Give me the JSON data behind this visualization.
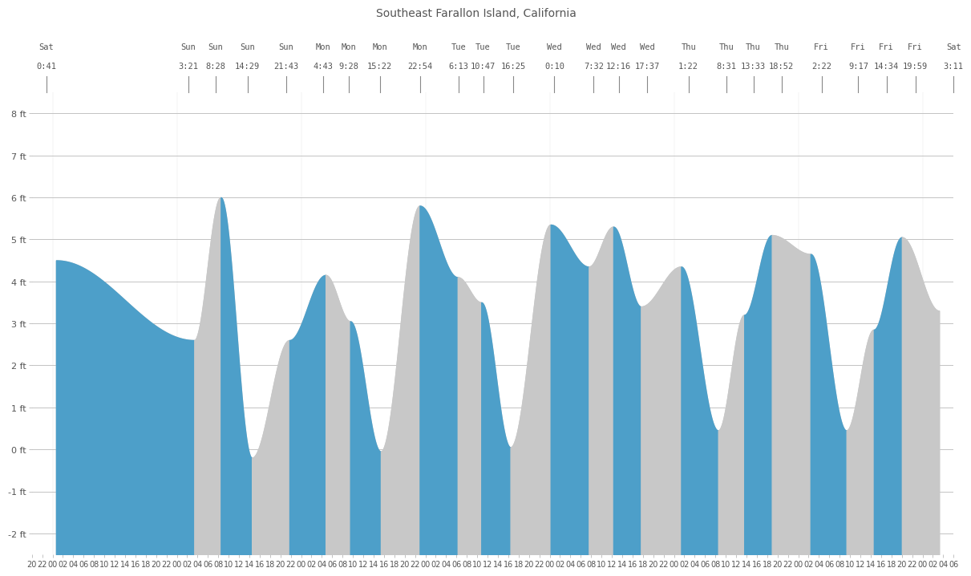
{
  "title": "Southeast Farallon Island, California",
  "ylim": [
    -2.5,
    8.5
  ],
  "yticks": [
    -2,
    -1,
    0,
    1,
    2,
    3,
    4,
    5,
    6,
    7,
    8
  ],
  "blue_color": "#4d9fc9",
  "gray_color": "#c8c8c8",
  "background_color": "#ffffff",
  "grid_color": "#888888",
  "tick_label_color": "#555555",
  "title_color": "#555555",
  "tide_events": [
    {
      "day": "Sat",
      "time": "0:41",
      "value": 4.5,
      "day_idx": 0
    },
    {
      "day": "Sun",
      "time": "3:21",
      "value": 2.6,
      "day_idx": 1
    },
    {
      "day": "Sun",
      "time": "8:28",
      "value": 6.0,
      "day_idx": 1
    },
    {
      "day": "Sun",
      "time": "14:29",
      "value": -0.2,
      "day_idx": 1
    },
    {
      "day": "Sun",
      "time": "21:43",
      "value": 2.6,
      "day_idx": 1
    },
    {
      "day": "Mon",
      "time": "4:43",
      "value": 4.15,
      "day_idx": 2
    },
    {
      "day": "Mon",
      "time": "9:28",
      "value": 3.05,
      "day_idx": 2
    },
    {
      "day": "Mon",
      "time": "15:22",
      "value": -0.05,
      "day_idx": 2
    },
    {
      "day": "Mon",
      "time": "22:54",
      "value": 5.8,
      "day_idx": 2
    },
    {
      "day": "Tue",
      "time": "6:13",
      "value": 4.1,
      "day_idx": 3
    },
    {
      "day": "Tue",
      "time": "10:47",
      "value": 3.5,
      "day_idx": 3
    },
    {
      "day": "Tue",
      "time": "16:25",
      "value": 0.05,
      "day_idx": 3
    },
    {
      "day": "Wed",
      "time": "0:10",
      "value": 5.35,
      "day_idx": 4
    },
    {
      "day": "Wed",
      "time": "7:32",
      "value": 4.35,
      "day_idx": 4
    },
    {
      "day": "Wed",
      "time": "12:16",
      "value": 5.3,
      "day_idx": 4
    },
    {
      "day": "Wed",
      "time": "17:37",
      "value": 3.4,
      "day_idx": 4
    },
    {
      "day": "Thu",
      "time": "1:22",
      "value": 4.35,
      "day_idx": 5
    },
    {
      "day": "Thu",
      "time": "8:31",
      "value": 0.45,
      "day_idx": 5
    },
    {
      "day": "Thu",
      "time": "13:33",
      "value": 3.2,
      "day_idx": 5
    },
    {
      "day": "Thu",
      "time": "18:52",
      "value": 5.1,
      "day_idx": 5
    },
    {
      "day": "Fri",
      "time": "2:22",
      "value": 4.65,
      "day_idx": 6
    },
    {
      "day": "Fri",
      "time": "9:17",
      "value": 0.45,
      "day_idx": 6
    },
    {
      "day": "Fri",
      "time": "14:34",
      "value": 2.85,
      "day_idx": 6
    },
    {
      "day": "Fri",
      "time": "19:59",
      "value": 5.05,
      "day_idx": 6
    },
    {
      "day": "Sat",
      "time": "3:11",
      "value": 3.3,
      "day_idx": 7
    }
  ]
}
